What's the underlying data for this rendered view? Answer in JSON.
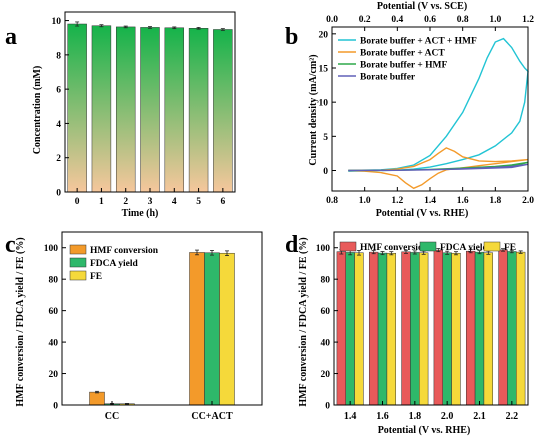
{
  "chart_data": [
    {
      "panel": "a",
      "type": "bar",
      "xlabel": "Time (h)",
      "ylabel": "Concentration (mM)",
      "categories": [
        "0",
        "1",
        "2",
        "3",
        "4",
        "5",
        "6"
      ],
      "values": [
        9.8,
        9.7,
        9.63,
        9.6,
        9.58,
        9.55,
        9.48
      ],
      "errors": [
        0.12,
        0.06,
        0.05,
        0.05,
        0.05,
        0.05,
        0.05
      ],
      "ylim": [
        0,
        10.5
      ],
      "yticks": [
        "0",
        "2",
        "4",
        "6",
        "8",
        "10"
      ],
      "bar_gradient": [
        "#15b34a",
        "#f6c79c"
      ]
    },
    {
      "panel": "b",
      "type": "line",
      "xlabel": "Potential (V vs. RHE)",
      "xlabel_top": "Potential (V vs. SCE)",
      "ylabel": "Current density (mA/cm²)",
      "xlim": [
        0.8,
        2.0
      ],
      "xlim_top": [
        0.0,
        1.2
      ],
      "ylim": [
        -3,
        21
      ],
      "xticks": [
        "0.8",
        "1.0",
        "1.2",
        "1.4",
        "1.6",
        "1.8",
        "2.0"
      ],
      "xticks_top": [
        "0.0",
        "0.2",
        "0.4",
        "0.6",
        "0.8",
        "1.0",
        "1.2"
      ],
      "yticks": [
        "0",
        "5",
        "10",
        "15",
        "20"
      ],
      "legend_position": "top-left",
      "series": [
        {
          "name": "Borate buffer + ACT + HMF",
          "color": "#22c4d4",
          "x": [
            0.9,
            1.1,
            1.2,
            1.3,
            1.4,
            1.5,
            1.6,
            1.7,
            1.75,
            1.8,
            1.85,
            1.9,
            1.95,
            1.98,
            2.0,
            1.98,
            1.95,
            1.9,
            1.8,
            1.7,
            1.6,
            1.5,
            1.4,
            1.3,
            1.2,
            1.0,
            0.9
          ],
          "y": [
            0,
            0.1,
            0.3,
            0.8,
            2.2,
            5,
            8.5,
            13.5,
            16.5,
            18.8,
            19.3,
            18,
            16,
            15,
            14.5,
            10,
            7.2,
            5.5,
            3.6,
            2.3,
            1.6,
            1.0,
            0.5,
            0.2,
            0.05,
            -0.05,
            -0.1
          ]
        },
        {
          "name": "Borate buffer + ACT",
          "color": "#f39a2a",
          "x": [
            0.9,
            1.1,
            1.2,
            1.3,
            1.4,
            1.45,
            1.5,
            1.55,
            1.6,
            1.7,
            1.8,
            1.9,
            2.0,
            1.9,
            1.8,
            1.7,
            1.6,
            1.5,
            1.45,
            1.4,
            1.35,
            1.3,
            1.25,
            1.2,
            1.1,
            1.0,
            0.9
          ],
          "y": [
            0,
            0.05,
            0.2,
            0.6,
            1.6,
            2.5,
            3.3,
            2.8,
            2.0,
            1.4,
            1.3,
            1.4,
            1.6,
            1.3,
            1.0,
            0.7,
            0.4,
            0.1,
            -0.4,
            -1.2,
            -2.1,
            -2.6,
            -1.8,
            -0.8,
            -0.3,
            -0.1,
            0
          ]
        },
        {
          "name": "Borate buffer + HMF",
          "color": "#2ea84a",
          "x": [
            0.9,
            1.2,
            1.4,
            1.6,
            1.8,
            1.9,
            2.0,
            1.9,
            1.6,
            1.2,
            0.9
          ],
          "y": [
            0,
            0.05,
            0.15,
            0.35,
            0.6,
            0.8,
            1.2,
            0.6,
            0.25,
            0.05,
            0
          ]
        },
        {
          "name": "Borate buffer",
          "color": "#6060b8",
          "x": [
            0.9,
            1.2,
            1.4,
            1.6,
            1.8,
            1.9,
            2.0,
            1.9,
            1.6,
            1.2,
            0.9
          ],
          "y": [
            0,
            0.03,
            0.1,
            0.25,
            0.45,
            0.6,
            0.9,
            0.45,
            0.2,
            0.03,
            0
          ]
        }
      ]
    },
    {
      "panel": "c",
      "type": "bar",
      "xlabel": "",
      "ylabel": "HMF conversion / FDCA yield / FE (%)",
      "categories": [
        "CC",
        "CC+ACT"
      ],
      "ylim": [
        0,
        110
      ],
      "yticks": [
        "0",
        "20",
        "40",
        "60",
        "80",
        "100"
      ],
      "legend_position": "top-left",
      "series": [
        {
          "name": "HMF conversion",
          "color": "#f39a2a",
          "values": [
            8.2,
            97
          ],
          "errors": [
            0.5,
            1.5
          ]
        },
        {
          "name": "FDCA yield",
          "color": "#2eb86a",
          "values": [
            0.8,
            96.8
          ],
          "errors": [
            0.2,
            1.5
          ]
        },
        {
          "name": "FE",
          "color": "#f5d93a",
          "values": [
            0.8,
            96.5
          ],
          "errors": [
            0.2,
            1.5
          ]
        }
      ]
    },
    {
      "panel": "d",
      "type": "bar",
      "xlabel": "Potential (V vs. RHE)",
      "ylabel": "HMF conversion / FDCA yield / FE (%)",
      "categories": [
        "1.4",
        "1.6",
        "1.8",
        "2.0",
        "2.1",
        "2.2"
      ],
      "ylim": [
        0,
        110
      ],
      "yticks": [
        "0",
        "20",
        "40",
        "60",
        "80",
        "100"
      ],
      "legend_position": "top",
      "series": [
        {
          "name": "HMF conversion",
          "color": "#e85a5a",
          "values": [
            97.5,
            97.2,
            97.4,
            98.5,
            97.8,
            98.6
          ],
          "errors": [
            1.5,
            1.0,
            1.0,
            1.0,
            1.0,
            0.8
          ]
        },
        {
          "name": "FDCA yield",
          "color": "#2eb86a",
          "values": [
            97.0,
            96.6,
            97.0,
            96.8,
            97.2,
            97.6
          ],
          "errors": [
            1.5,
            1.0,
            1.0,
            1.0,
            1.0,
            0.8
          ]
        },
        {
          "name": "FE",
          "color": "#f5d93a",
          "values": [
            96.8,
            96.5,
            96.8,
            96.5,
            96.8,
            97.2
          ],
          "errors": [
            1.5,
            1.0,
            1.0,
            1.0,
            1.0,
            0.8
          ]
        }
      ]
    }
  ],
  "panel_labels": [
    "a",
    "b",
    "c",
    "d"
  ]
}
